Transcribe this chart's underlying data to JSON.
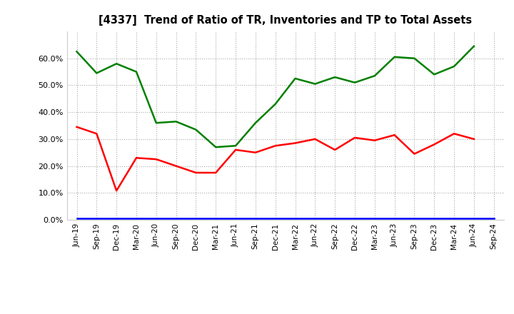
{
  "title": "[4337]  Trend of Ratio of TR, Inventories and TP to Total Assets",
  "x_labels": [
    "Jun-19",
    "Sep-19",
    "Dec-19",
    "Mar-20",
    "Jun-20",
    "Sep-20",
    "Dec-20",
    "Mar-21",
    "Jun-21",
    "Sep-21",
    "Dec-21",
    "Mar-22",
    "Jun-22",
    "Sep-22",
    "Dec-22",
    "Mar-23",
    "Jun-23",
    "Sep-23",
    "Dec-23",
    "Mar-24",
    "Jun-24",
    "Sep-24"
  ],
  "trade_receivables": [
    0.345,
    0.32,
    0.108,
    0.23,
    0.225,
    0.2,
    0.175,
    0.175,
    0.26,
    0.25,
    0.275,
    0.285,
    0.3,
    0.26,
    0.305,
    0.295,
    0.315,
    0.245,
    0.28,
    0.32,
    0.3,
    null
  ],
  "inventories": [
    0.005,
    0.005,
    0.005,
    0.005,
    0.005,
    0.005,
    0.005,
    0.005,
    0.005,
    0.005,
    0.005,
    0.005,
    0.005,
    0.005,
    0.005,
    0.005,
    0.005,
    0.005,
    0.005,
    0.005,
    0.005,
    0.005
  ],
  "trade_payables": [
    0.625,
    0.545,
    0.58,
    0.55,
    0.36,
    0.365,
    0.335,
    0.27,
    0.275,
    0.36,
    0.43,
    0.525,
    0.505,
    0.53,
    0.51,
    0.535,
    0.605,
    0.6,
    0.54,
    0.57,
    0.645,
    null
  ],
  "tr_color": "#ff0000",
  "inv_color": "#0000ff",
  "tp_color": "#008000",
  "background_color": "#ffffff",
  "grid_color": "#aaaaaa",
  "ylim": [
    0.0,
    0.7
  ],
  "yticks": [
    0.0,
    0.1,
    0.2,
    0.3,
    0.4,
    0.5,
    0.6
  ]
}
